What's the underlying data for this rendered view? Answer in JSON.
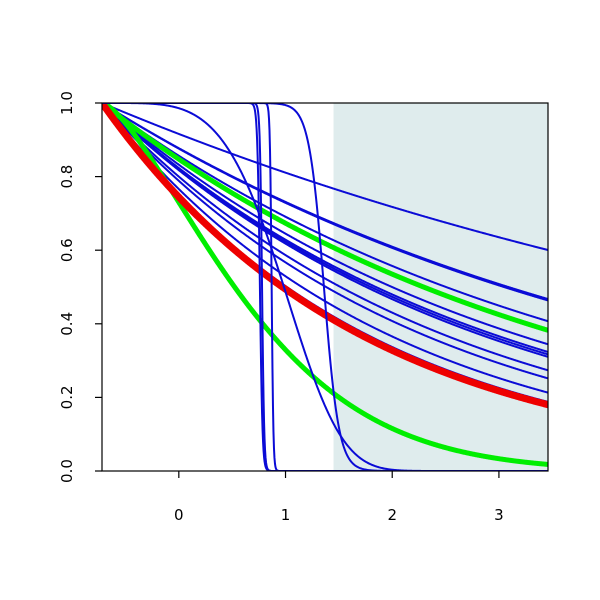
{
  "chart_data": {
    "type": "line",
    "title": "",
    "xlabel": "",
    "ylabel": "",
    "xlim": [
      -0.72,
      3.46
    ],
    "ylim": [
      0,
      1
    ],
    "grid": false,
    "x_ticks": [
      0,
      1,
      2,
      3
    ],
    "y_ticks": [
      0.0,
      0.2,
      0.4,
      0.6,
      0.8,
      1.0
    ],
    "x_tick_labels": [
      "0",
      "1",
      "2",
      "3"
    ],
    "y_tick_labels": [
      "0.0",
      "0.2",
      "0.4",
      "0.6",
      "0.8",
      "1.0"
    ],
    "shaded_region": {
      "x": [
        1.45,
        3.46
      ],
      "color": "#dfeced"
    },
    "colors": {
      "blue": "#0b0bd6",
      "green": "#00ee00",
      "red": "#ee0000",
      "axis": "#000000"
    },
    "series": [
      {
        "kind": "exp",
        "k": 0.122,
        "color": "blue",
        "width": 2
      },
      {
        "kind": "exp",
        "k": 0.182,
        "color": "blue",
        "width": 2
      },
      {
        "kind": "exp",
        "k": 0.184,
        "color": "blue",
        "width": 2
      },
      {
        "kind": "exp",
        "k": 0.215,
        "color": "blue",
        "width": 2
      },
      {
        "kind": "exp",
        "k": 0.255,
        "color": "blue",
        "width": 2
      },
      {
        "kind": "exp",
        "k": 0.27,
        "color": "blue",
        "width": 2
      },
      {
        "kind": "exp",
        "k": 0.275,
        "color": "blue",
        "width": 2
      },
      {
        "kind": "exp",
        "k": 0.28,
        "color": "blue",
        "width": 2
      },
      {
        "kind": "exp",
        "k": 0.31,
        "color": "blue",
        "width": 2
      },
      {
        "kind": "exp",
        "k": 0.33,
        "color": "blue",
        "width": 2
      },
      {
        "kind": "exp",
        "k": 0.37,
        "color": "blue",
        "width": 2
      },
      {
        "kind": "exp",
        "k": 0.4,
        "color": "blue",
        "width": 2
      },
      {
        "kind": "exp",
        "k": 0.23,
        "color": "green",
        "width": 5
      },
      {
        "kind": "weibull",
        "lambda": 1.6,
        "shape": 1.45,
        "color": "green",
        "width": 5
      },
      {
        "kind": "exp",
        "k": 0.41,
        "color": "red",
        "width": 7
      },
      {
        "kind": "logistic",
        "c": 0.76,
        "s": 0.012,
        "color": "blue",
        "width": 2
      },
      {
        "kind": "logistic",
        "c": 0.78,
        "s": 0.01,
        "color": "blue",
        "width": 2
      },
      {
        "kind": "logistic",
        "c": 0.87,
        "s": 0.008,
        "color": "blue",
        "width": 2
      },
      {
        "kind": "logistic",
        "c": 1.36,
        "s": 0.07,
        "color": "blue",
        "width": 2
      },
      {
        "kind": "weibull",
        "lambda": 1.85,
        "shape": 4.5,
        "color": "blue",
        "width": 2
      }
    ]
  }
}
